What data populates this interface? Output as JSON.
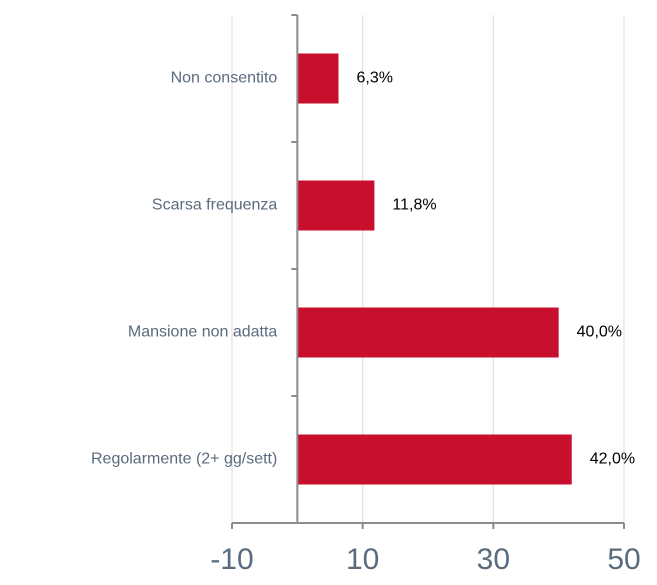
{
  "chart_data": {
    "type": "barh",
    "categories": [
      "Non consentito",
      "Scarsa frequenza",
      "Mansione non adatta",
      "Regolarmente (2+ gg/sett)"
    ],
    "values": [
      6.3,
      11.8,
      40.0,
      42.0
    ],
    "value_labels": [
      "6,3%",
      "11,8%",
      "40,0%",
      "42,0%"
    ],
    "color": "#c8102e",
    "xlim": [
      -10,
      50
    ],
    "xticks": [
      -10,
      10,
      30,
      50
    ],
    "grid": true
  }
}
